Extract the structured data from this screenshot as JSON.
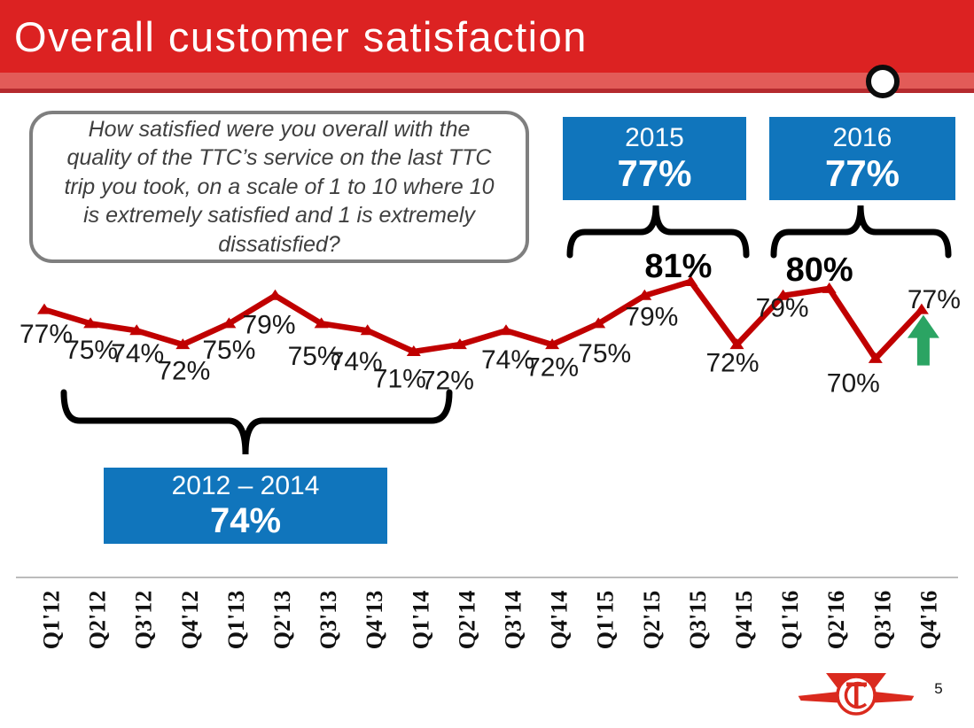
{
  "slide": {
    "title": "Overall customer satisfaction",
    "page_number": "5"
  },
  "question_box": {
    "text": "How satisfied were you overall with the quality of the TTC’s service on the last TTC trip you took, on a scale of 1 to 10 where 10 is extremely satisfied and 1 is extremely dissatisfied?"
  },
  "summary_boxes": {
    "period_2012_2014": {
      "label": "2012 – 2014",
      "value": "74%"
    },
    "period_2015": {
      "label": "2015",
      "value": "77%"
    },
    "period_2016": {
      "label": "2016",
      "value": "77%"
    }
  },
  "chart_data": {
    "type": "line",
    "title": "Overall customer satisfaction",
    "categories": [
      "Q1'12",
      "Q2'12",
      "Q3'12",
      "Q4'12",
      "Q1'13",
      "Q2'13",
      "Q3'13",
      "Q4'13",
      "Q1'14",
      "Q2'14",
      "Q3'14",
      "Q4'14",
      "Q1'15",
      "Q2'15",
      "Q3'15",
      "Q4'15",
      "Q1'16",
      "Q2'16",
      "Q3'16",
      "Q4'16"
    ],
    "values": [
      77,
      75,
      74,
      72,
      75,
      79,
      75,
      74,
      71,
      72,
      74,
      72,
      75,
      79,
      81,
      72,
      79,
      80,
      70,
      77
    ],
    "unit": "%",
    "ylim": [
      68,
      83
    ],
    "grid": false,
    "legend": "none",
    "line_color": "#C00000",
    "marker": "triangle-up",
    "emphasized_points": [
      "Q3'15",
      "Q2'16"
    ],
    "annotation_arrow": {
      "category": "Q4'16",
      "direction": "up",
      "color": "#2BA463"
    },
    "group_averages": [
      {
        "label": "2012 – 2014",
        "value": 74
      },
      {
        "label": "2015",
        "value": 77
      },
      {
        "label": "2016",
        "value": 77
      }
    ]
  },
  "colors": {
    "header_red": "#DC2222",
    "header_stripe": "#E25B58",
    "header_underline": "#B52A2E",
    "accent_blue": "#1075BC",
    "line_red": "#C00000",
    "arrow_green": "#2BA463",
    "logo_red": "#DA2A1E"
  }
}
